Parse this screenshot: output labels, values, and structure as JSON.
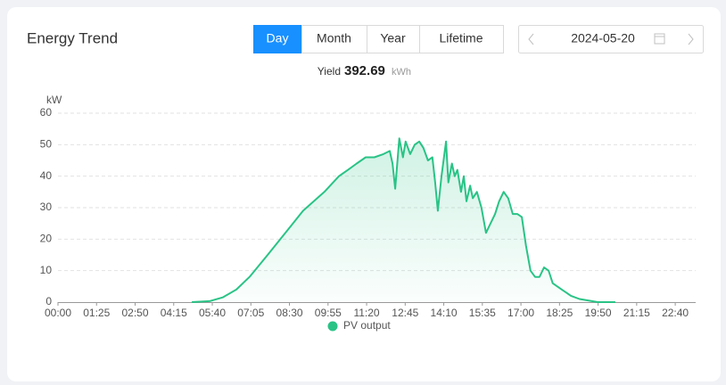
{
  "header": {
    "title": "Energy Trend",
    "tabs": [
      "Day",
      "Month",
      "Year",
      "Lifetime"
    ],
    "active_tab": 0,
    "date": "2024-05-20"
  },
  "summary": {
    "label": "Yield",
    "value": "392.69",
    "unit": "kWh"
  },
  "chart_data": {
    "type": "area",
    "y_label": "kW",
    "ylim": [
      0,
      60
    ],
    "yticks": [
      0,
      10,
      20,
      30,
      40,
      50,
      60
    ],
    "grid": true,
    "legend": "bottom",
    "xlim": [
      0,
      1405
    ],
    "xticks": [
      {
        "value": 0,
        "label": "00:00"
      },
      {
        "value": 85,
        "label": "01:25"
      },
      {
        "value": 170,
        "label": "02:50"
      },
      {
        "value": 255,
        "label": "04:15"
      },
      {
        "value": 340,
        "label": "05:40"
      },
      {
        "value": 425,
        "label": "07:05"
      },
      {
        "value": 510,
        "label": "08:30"
      },
      {
        "value": 595,
        "label": "09:55"
      },
      {
        "value": 680,
        "label": "11:20"
      },
      {
        "value": 765,
        "label": "12:45"
      },
      {
        "value": 850,
        "label": "14:10"
      },
      {
        "value": 935,
        "label": "15:35"
      },
      {
        "value": 1020,
        "label": "17:00"
      },
      {
        "value": 1105,
        "label": "18:25"
      },
      {
        "value": 1190,
        "label": "19:50"
      },
      {
        "value": 1275,
        "label": "21:15"
      },
      {
        "value": 1360,
        "label": "22:40"
      }
    ],
    "x": [
      295,
      334,
      363,
      393,
      422,
      462,
      501,
      540,
      587,
      619,
      639,
      658,
      678,
      697,
      717,
      731,
      737,
      743,
      752,
      760,
      766,
      776,
      786,
      796,
      805,
      815,
      825,
      831,
      837,
      845,
      855,
      860,
      868,
      874,
      880,
      888,
      894,
      900,
      908,
      914,
      923,
      933,
      943,
      953,
      963,
      972,
      982,
      992,
      1002,
      1012,
      1022,
      1031,
      1041,
      1051,
      1061,
      1071,
      1081,
      1090,
      1110,
      1130,
      1149,
      1189,
      1228
    ],
    "series": [
      {
        "name": "PV output",
        "color": "#29c386",
        "values": [
          0,
          0.3,
          1.5,
          4,
          8,
          15,
          22,
          29,
          35,
          40,
          42,
          44,
          46,
          46,
          47,
          48,
          44,
          36,
          52,
          46,
          51,
          47,
          50,
          51,
          49,
          45,
          46,
          38,
          29,
          40,
          51,
          38,
          44,
          40,
          42,
          35,
          40,
          32,
          37,
          33,
          35,
          30,
          22,
          25,
          28,
          32,
          35,
          33,
          28,
          28,
          27,
          18,
          10,
          8,
          8,
          11,
          10,
          6,
          4,
          2,
          1,
          0,
          0
        ]
      }
    ]
  }
}
